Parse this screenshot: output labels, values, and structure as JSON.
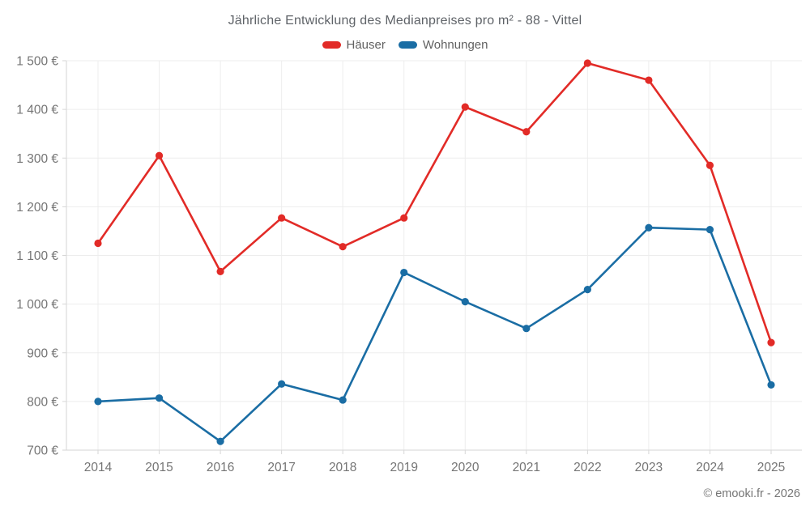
{
  "title": "Jährliche Entwicklung des Medianpreises pro m² - 88 - Vittel",
  "legend": [
    {
      "label": "Häuser",
      "color": "#e22b27"
    },
    {
      "label": "Wohnungen",
      "color": "#1a6da4"
    }
  ],
  "footer": "© emooki.fr - 2026",
  "colors": {
    "grid": "#ededed",
    "axis": "#d6d6d6",
    "tick_label": "#757575",
    "title_text": "#5f6368"
  },
  "chart_data": {
    "type": "line",
    "title": "Jährliche Entwicklung des Medianpreises pro m² - 88 - Vittel",
    "categories": [
      "2014",
      "2015",
      "2016",
      "2017",
      "2018",
      "2019",
      "2020",
      "2021",
      "2022",
      "2023",
      "2024",
      "2025"
    ],
    "series": [
      {
        "name": "Häuser",
        "color": "#e22b27",
        "values": [
          1125,
          1305,
          1067,
          1177,
          1118,
          1177,
          1405,
          1354,
          1495,
          1460,
          1285,
          921
        ]
      },
      {
        "name": "Wohnungen",
        "color": "#1a6da4",
        "values": [
          800,
          807,
          718,
          836,
          803,
          1065,
          1005,
          950,
          1030,
          1157,
          1153,
          834
        ]
      }
    ],
    "xlabel": "",
    "ylabel": "",
    "ylim": [
      700,
      1500
    ],
    "ytick_step": 100,
    "ytick_suffix": " €",
    "grid": true,
    "legend_position": "top"
  }
}
